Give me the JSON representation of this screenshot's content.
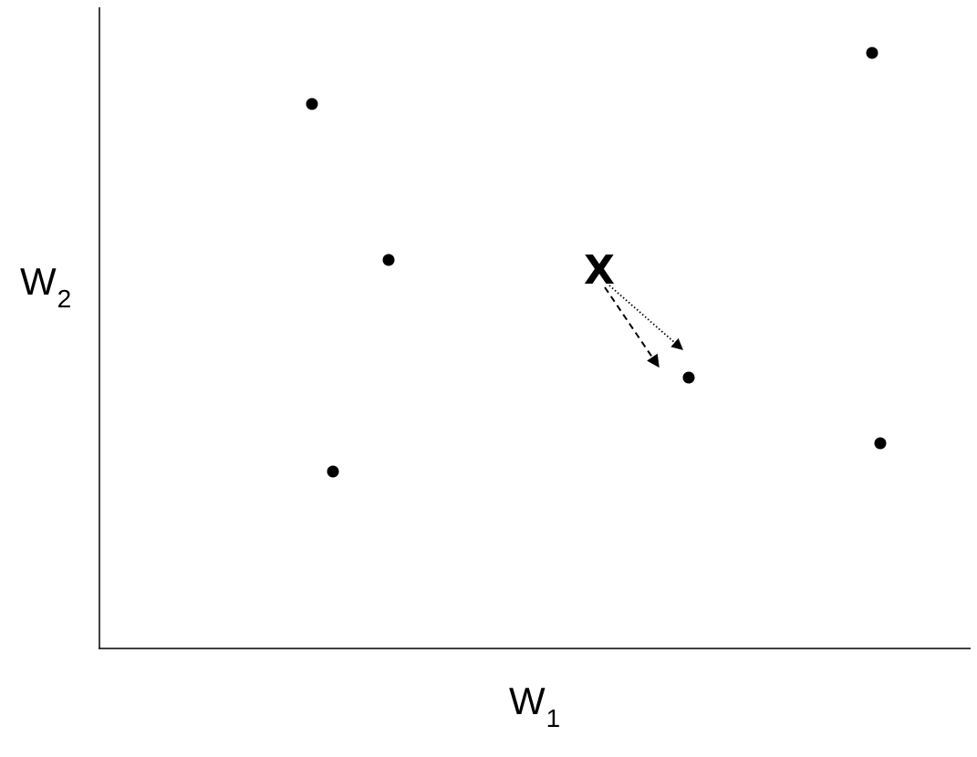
{
  "axes": {
    "x_label": "W",
    "x_subscript": "1",
    "y_label": "W",
    "y_subscript": "2"
  },
  "query_point": {
    "label": "X"
  },
  "points_count": 6,
  "arrows": [
    {
      "style": "dotted"
    },
    {
      "style": "dashed"
    }
  ],
  "colors": {
    "ink": "#000000",
    "background": "#ffffff"
  }
}
